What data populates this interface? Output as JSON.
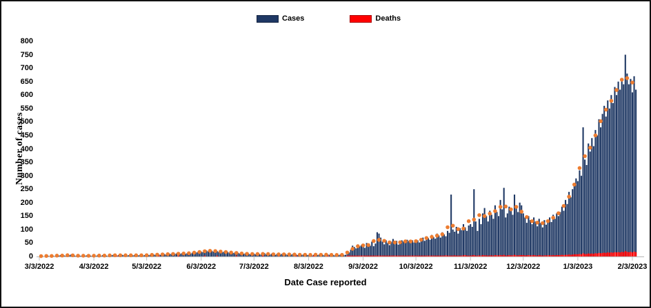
{
  "figure": {
    "background": "#ffffff",
    "border_color": "#111111"
  },
  "chart_data": {
    "type": "bar",
    "title": "",
    "xlabel": "Date Case reported",
    "ylabel": "Number of cases",
    "ylim": [
      0,
      800
    ],
    "ytick_step": 50,
    "grid": false,
    "legend_position": "top-center",
    "axis_color": "#bfbfbf",
    "x_start_date": "3/3/2022",
    "x_tick_labels": [
      "3/3/2022",
      "4/3/2022",
      "5/3/2022",
      "6/3/2022",
      "7/3/2022",
      "8/3/2022",
      "9/3/2022",
      "10/3/2022",
      "11/3/2022",
      "12/3/2022",
      "1/3/2023",
      "2/3/2023"
    ],
    "x_tick_day_offsets": [
      0,
      31,
      61,
      92,
      122,
      153,
      184,
      214,
      245,
      275,
      306,
      337
    ],
    "legend": [
      {
        "label": "Cases",
        "color": "#1f3864"
      },
      {
        "label": "Deaths",
        "color": "#ff0000"
      }
    ],
    "marker_overlay": {
      "name": "moving-average-dot",
      "window_days": 7,
      "sample_every_days": 3,
      "color": "#ed7d31",
      "derived_from": "Cases"
    },
    "series": [
      {
        "name": "Cases",
        "type": "bar",
        "color": "#1f3864",
        "values": [
          0,
          2,
          1,
          0,
          3,
          2,
          1,
          4,
          2,
          1,
          0,
          3,
          5,
          6,
          4,
          2,
          3,
          5,
          7,
          5,
          3,
          2,
          4,
          3,
          2,
          1,
          3,
          4,
          2,
          3,
          2,
          3,
          2,
          4,
          3,
          2,
          5,
          4,
          3,
          2,
          4,
          5,
          6,
          4,
          3,
          5,
          4,
          6,
          5,
          3,
          4,
          5,
          3,
          4,
          5,
          6,
          4,
          5,
          3,
          4,
          5,
          4,
          5,
          6,
          5,
          7,
          6,
          8,
          7,
          6,
          8,
          9,
          7,
          8,
          10,
          9,
          8,
          10,
          11,
          9,
          10,
          12,
          11,
          10,
          12,
          13,
          11,
          14,
          13,
          15,
          16,
          17,
          18,
          16,
          20,
          22,
          19,
          24,
          21,
          18,
          22,
          20,
          17,
          19,
          16,
          18,
          15,
          17,
          14,
          16,
          13,
          14,
          12,
          13,
          11,
          12,
          10,
          11,
          9,
          10,
          8,
          9,
          10,
          8,
          11,
          9,
          7,
          10,
          12,
          8,
          9,
          7,
          10,
          8,
          6,
          9,
          7,
          8,
          10,
          7,
          9,
          6,
          8,
          7,
          9,
          6,
          7,
          5,
          8,
          6,
          7,
          5,
          6,
          5,
          7,
          4,
          6,
          8,
          5,
          7,
          9,
          6,
          4,
          5,
          7,
          6,
          8,
          5,
          4,
          6,
          5,
          7,
          4,
          5,
          6,
          8,
          15,
          25,
          40,
          35,
          30,
          45,
          38,
          42,
          36,
          32,
          50,
          45,
          40,
          55,
          38,
          48,
          90,
          85,
          70,
          55,
          45,
          60,
          50,
          42,
          55,
          65,
          48,
          58,
          44,
          52,
          60,
          56,
          50,
          62,
          58,
          54,
          60,
          52,
          55,
          60,
          52,
          65,
          70,
          58,
          75,
          68,
          62,
          80,
          72,
          66,
          85,
          78,
          70,
          90,
          82,
          75,
          95,
          88,
          230,
          100,
          92,
          110,
          85,
          105,
          98,
          120,
          108,
          95,
          115,
          120,
          110,
          250,
          130,
          95,
          140,
          120,
          160,
          180,
          150,
          130,
          170,
          155,
          140,
          190,
          165,
          150,
          210,
          175,
          255,
          145,
          160,
          185,
          170,
          155,
          230,
          180,
          165,
          200,
          190,
          160,
          145,
          125,
          150,
          135,
          120,
          145,
          130,
          112,
          140,
          125,
          108,
          135,
          118,
          130,
          145,
          128,
          155,
          140,
          160,
          150,
          165,
          185,
          170,
          210,
          195,
          240,
          220,
          250,
          270,
          290,
          280,
          320,
          300,
          480,
          360,
          340,
          420,
          390,
          440,
          410,
          470,
          450,
          510,
          480,
          530,
          560,
          520,
          580,
          550,
          600,
          570,
          630,
          600,
          650,
          620,
          660,
          640,
          750,
          680,
          640,
          660,
          610,
          670,
          620
        ]
      },
      {
        "name": "Deaths",
        "type": "bar",
        "color": "#ff0000",
        "values": [
          0,
          0,
          0,
          0,
          0,
          0,
          0,
          0,
          0,
          0,
          0,
          0,
          0,
          0,
          0,
          0,
          0,
          0,
          0,
          0,
          0,
          0,
          0,
          0,
          0,
          0,
          0,
          0,
          0,
          0,
          0,
          0,
          0,
          0,
          0,
          0,
          0,
          0,
          0,
          0,
          0,
          0,
          0,
          0,
          1,
          0,
          0,
          0,
          0,
          0,
          0,
          0,
          0,
          0,
          0,
          0,
          0,
          0,
          0,
          0,
          0,
          0,
          0,
          0,
          0,
          0,
          0,
          0,
          1,
          0,
          0,
          0,
          0,
          0,
          0,
          0,
          0,
          0,
          0,
          1,
          0,
          0,
          0,
          0,
          0,
          0,
          0,
          0,
          0,
          0,
          0,
          0,
          0,
          0,
          1,
          0,
          0,
          0,
          0,
          0,
          0,
          1,
          0,
          0,
          0,
          0,
          0,
          0,
          0,
          0,
          0,
          0,
          1,
          0,
          0,
          0,
          0,
          0,
          0,
          0,
          0,
          0,
          0,
          0,
          0,
          0,
          0,
          1,
          0,
          0,
          0,
          0,
          0,
          0,
          0,
          0,
          1,
          0,
          0,
          0,
          0,
          0,
          0,
          0,
          0,
          0,
          1,
          0,
          0,
          0,
          0,
          0,
          0,
          0,
          0,
          0,
          1,
          0,
          0,
          0,
          0,
          0,
          0,
          0,
          1,
          0,
          0,
          0,
          0,
          0,
          0,
          0,
          0,
          0,
          0,
          1,
          1,
          2,
          2,
          1,
          2,
          3,
          2,
          2,
          2,
          1,
          2,
          3,
          2,
          2,
          1,
          2,
          3,
          3,
          2,
          2,
          1,
          2,
          2,
          3,
          2,
          1,
          2,
          2,
          3,
          2,
          2,
          1,
          2,
          3,
          2,
          2,
          3,
          2,
          2,
          3,
          2,
          2,
          3,
          2,
          3,
          2,
          2,
          3,
          3,
          2,
          3,
          2,
          3,
          3,
          2,
          4,
          3,
          2,
          3,
          3,
          4,
          3,
          3,
          2,
          3,
          4,
          5,
          3,
          3,
          3,
          4,
          5,
          3,
          3,
          4,
          3,
          5,
          4,
          4,
          3,
          4,
          4,
          3,
          5,
          4,
          4,
          5,
          4,
          6,
          3,
          4,
          5,
          4,
          4,
          6,
          4,
          4,
          5,
          5,
          5,
          4,
          4,
          5,
          4,
          4,
          5,
          4,
          3,
          5,
          4,
          3,
          4,
          4,
          4,
          5,
          4,
          5,
          4,
          5,
          5,
          5,
          6,
          5,
          6,
          6,
          7,
          6,
          7,
          8,
          8,
          8,
          9,
          8,
          12,
          9,
          9,
          11,
          10,
          11,
          10,
          12,
          11,
          13,
          12,
          13,
          14,
          13,
          15,
          14,
          15,
          14,
          16,
          15,
          16,
          15,
          17,
          16,
          20,
          17,
          16,
          17,
          15,
          18,
          16
        ]
      }
    ]
  }
}
